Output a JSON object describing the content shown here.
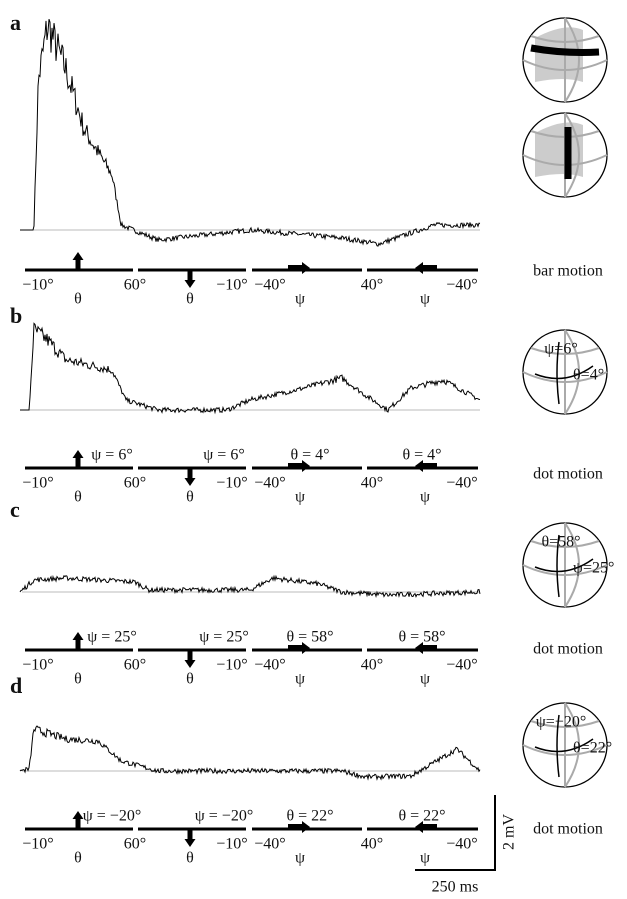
{
  "panels": [
    {
      "label": "a",
      "stimulus_labels": [],
      "bar_labels": [
        "−10°",
        "60°",
        "−10°",
        "−40°",
        "40°",
        "−40°"
      ],
      "axis_symbols": [
        "θ",
        "θ",
        "ψ",
        "ψ"
      ],
      "sphere_labels": [],
      "caption": "bar motion"
    },
    {
      "label": "b",
      "stimulus_labels": [
        "ψ = 6°",
        "ψ = 6°",
        "θ = 4°",
        "θ = 4°"
      ],
      "bar_labels": [
        "−10°",
        "60°",
        "−10°",
        "−40°",
        "40°",
        "−40°"
      ],
      "axis_symbols": [
        "θ",
        "θ",
        "ψ",
        "ψ"
      ],
      "sphere_labels": [
        "ψ=6°",
        "θ=4°"
      ],
      "caption": "dot motion"
    },
    {
      "label": "c",
      "stimulus_labels": [
        "ψ = 25°",
        "ψ = 25°",
        "θ = 58°",
        "θ = 58°"
      ],
      "bar_labels": [
        "−10°",
        "60°",
        "−10°",
        "−40°",
        "40°",
        "−40°"
      ],
      "axis_symbols": [
        "θ",
        "θ",
        "ψ",
        "ψ"
      ],
      "sphere_labels": [
        "θ=58°",
        "ψ=25°"
      ],
      "caption": "dot motion"
    },
    {
      "label": "d",
      "stimulus_labels": [
        "ψ = −20°",
        "ψ = −20°",
        "θ = 22°",
        "θ = 22°"
      ],
      "bar_labels": [
        "−10°",
        "60°",
        "−10°",
        "−40°",
        "40°",
        "−40°"
      ],
      "axis_symbols": [
        "θ",
        "θ",
        "ψ",
        "ψ"
      ],
      "sphere_labels": [
        "ψ=−20°",
        "θ=22°"
      ],
      "caption": "dot motion"
    }
  ],
  "scale_bar": {
    "vertical": "2 mV",
    "horizontal": "250 ms"
  }
}
